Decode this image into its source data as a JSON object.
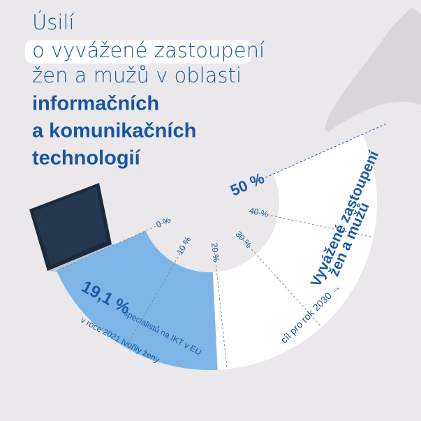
{
  "chart_data": {
    "type": "gauge",
    "title": [
      "Úsilí",
      "o vyvážené zastoupení",
      "žen a mužů v oblasti",
      "informačních",
      "a komunikačních",
      "technologií"
    ],
    "ylim": [
      0,
      50
    ],
    "yticks": [
      {
        "value": 0,
        "label": "0 %"
      },
      {
        "value": 10,
        "label": "10 %"
      },
      {
        "value": 20,
        "label": "20 %"
      },
      {
        "value": 30,
        "label": "30 %"
      },
      {
        "value": 40,
        "label": "40 %"
      },
      {
        "value": 50,
        "label": "50 %"
      }
    ],
    "value": 19.1,
    "value_label": "19,1 %",
    "color": "#7db5e6",
    "track_color": "#ffffff",
    "annotation": [
      "specialistů na IKT v EU",
      "v roce 2021 tvořily ženy"
    ],
    "target_label": [
      "Vyvážené zastoupení",
      "žen a mužů"
    ],
    "target_note": "cíl pro rok 2030 →"
  }
}
